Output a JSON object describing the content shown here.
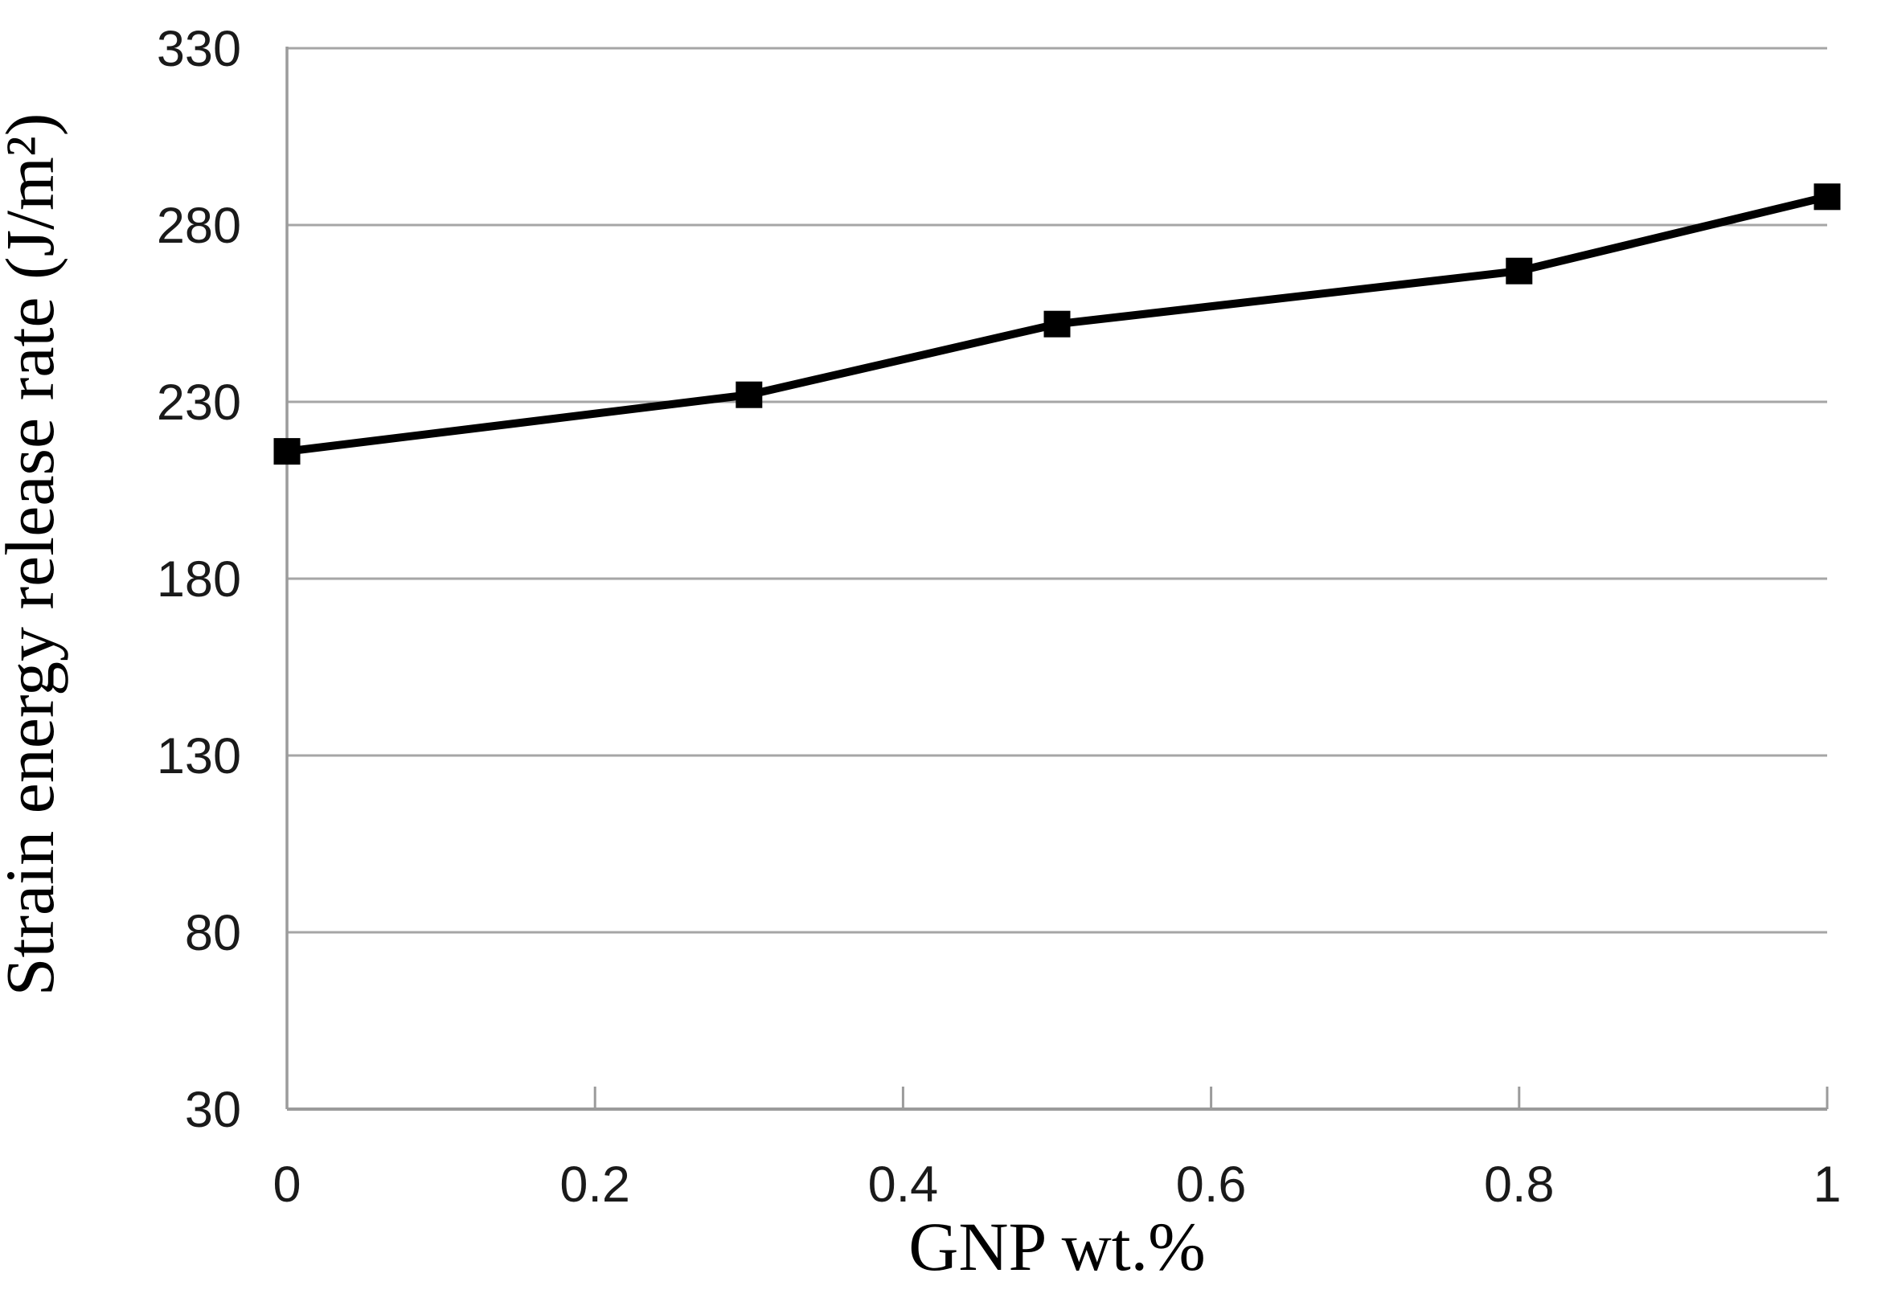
{
  "chart_data": {
    "type": "line",
    "title": "",
    "xlabel": "GNP wt.%",
    "ylabel": "Strain energy release rate (J/m²)",
    "series": [
      {
        "name": "Strain energy release rate",
        "x": [
          0,
          0.3,
          0.5,
          0.8,
          1
        ],
        "y": [
          216,
          232,
          252,
          267,
          288
        ]
      }
    ],
    "xlim": [
      0,
      1
    ],
    "ylim": [
      30,
      330
    ],
    "xticks": [
      0,
      0.2,
      0.4,
      0.6,
      0.8,
      1
    ],
    "xtick_labels": [
      "0",
      "0.2",
      "0.4",
      "0.6",
      "0.8",
      "1"
    ],
    "yticks": [
      30,
      80,
      130,
      180,
      230,
      280,
      330
    ],
    "ytick_labels": [
      "30",
      "80",
      "130",
      "180",
      "230",
      "280",
      "330"
    ],
    "grid": "horizontal-only",
    "legend_position": "none",
    "marker": "filled-square",
    "marker_size": 33,
    "line_width": 10,
    "colors": {
      "line": "#000000",
      "marker": "#000000",
      "gridline": "#a6a6a6",
      "axis": "#9b9b9b",
      "background": "#ffffff",
      "tick_text": "#1a1a1a",
      "title_text": "#000000"
    }
  }
}
